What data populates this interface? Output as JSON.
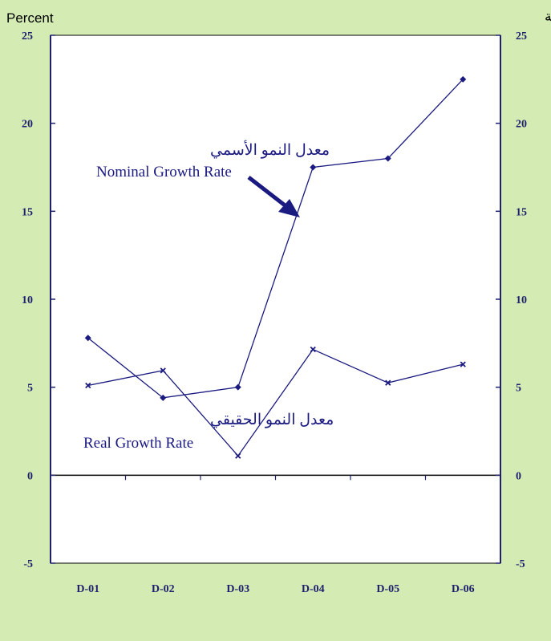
{
  "chart_data": {
    "type": "line",
    "categories": [
      "D-01",
      "D-02",
      "D-03",
      "D-04",
      "D-05",
      "D-06"
    ],
    "series": [
      {
        "name": "Nominal Growth Rate",
        "name_ar": "معدل النمو الأسمي",
        "values": [
          7.8,
          4.4,
          5.0,
          17.5,
          18.0,
          22.5
        ],
        "marker": "diamond"
      },
      {
        "name": "Real Growth Rate",
        "name_ar": "معدل النمو الحقيقي",
        "values": [
          5.1,
          5.95,
          1.1,
          7.15,
          5.25,
          6.3
        ],
        "marker": "x"
      }
    ],
    "ylabel_left": "Percent",
    "ylabel_right": "نسبة مئوية",
    "ylim": [
      -5,
      25
    ],
    "yticks": [
      "-5",
      "0",
      "5",
      "10",
      "15",
      "20",
      "25"
    ],
    "grid": false,
    "colors": {
      "background": "#d4ecb4",
      "plot": "#ffffff",
      "series": "#1a1a80",
      "axis": "#1f1f6e"
    }
  }
}
